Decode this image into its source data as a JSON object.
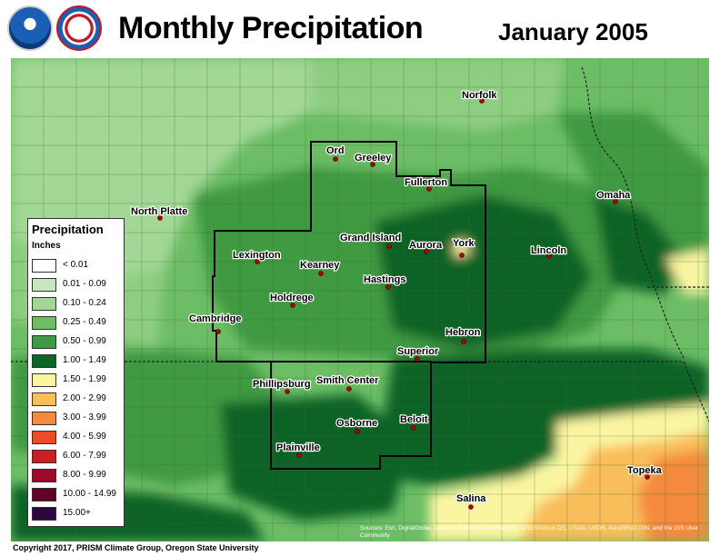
{
  "header": {
    "title": "Monthly Precipitation",
    "subtitle": "January 2005"
  },
  "legend": {
    "title": "Precipitation",
    "unit": "Inches",
    "items": [
      {
        "label": "< 0.01",
        "color": "#ffffff"
      },
      {
        "label": "0.01 - 0.09",
        "color": "#c9e7bf"
      },
      {
        "label": "0.10 - 0.24",
        "color": "#a2d795"
      },
      {
        "label": "0.25 - 0.49",
        "color": "#6cbd65"
      },
      {
        "label": "0.50 - 0.99",
        "color": "#3f9a43"
      },
      {
        "label": "1.00 - 1.49",
        "color": "#0d6426"
      },
      {
        "label": "1.50 - 1.99",
        "color": "#fbf5a1"
      },
      {
        "label": "2.00 - 2.99",
        "color": "#f9be5a"
      },
      {
        "label": "3.00 - 3.99",
        "color": "#f48a3e"
      },
      {
        "label": "4.00 - 5.99",
        "color": "#ec4b26"
      },
      {
        "label": "6.00 - 7.99",
        "color": "#cc1e24"
      },
      {
        "label": "8.00 - 9.99",
        "color": "#9c0a2a"
      },
      {
        "label": "10.00 - 14.99",
        "color": "#640026"
      },
      {
        "label": "15.00+",
        "color": "#2e0640"
      }
    ]
  },
  "cities": [
    {
      "name": "Norfolk"
    },
    {
      "name": "Ord"
    },
    {
      "name": "Greeley"
    },
    {
      "name": "Fullerton"
    },
    {
      "name": "North Platte"
    },
    {
      "name": "Omaha"
    },
    {
      "name": "Grand Island"
    },
    {
      "name": "Aurora"
    },
    {
      "name": "York"
    },
    {
      "name": "Lexington"
    },
    {
      "name": "Kearney"
    },
    {
      "name": "Lincoln"
    },
    {
      "name": "Hastings"
    },
    {
      "name": "Holdrege"
    },
    {
      "name": "Cambridge"
    },
    {
      "name": "Hebron"
    },
    {
      "name": "Superior"
    },
    {
      "name": "Phillipsburg"
    },
    {
      "name": "Smith Center"
    },
    {
      "name": "Beloit"
    },
    {
      "name": "Osborne"
    },
    {
      "name": "Plainville"
    },
    {
      "name": "Topeka"
    },
    {
      "name": "Salina"
    }
  ],
  "copyright": "Copyright 2017, PRISM Climate Group, Oregon State University",
  "attribution": "Sources: Esri, DigitalGlobe, GeoEye, Earthstar Geographics, CNES/Airbus DS, USDA, USGS, AeroGRID, IGN, and the GIS User Community"
}
